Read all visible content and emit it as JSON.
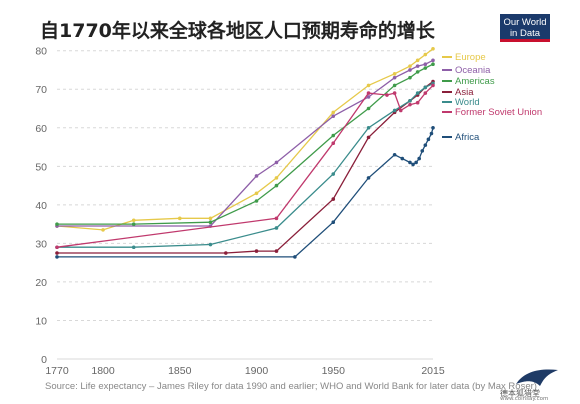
{
  "title": "自1770年以来全球各地区人口预期寿命的增长",
  "logo": {
    "line1": "Our World",
    "line2": "in Data"
  },
  "source": "Source: Life expectancy – James Riley for data 1990 and earlier; WHO and World Bank for later data (by Max Roser)",
  "watermark": {
    "name": "德本狐猎堂",
    "url": "www.coinsay.com"
  },
  "colors": {
    "Europe": "#e6c94a",
    "Oceania": "#8e5fa8",
    "Americas": "#3f9b4a",
    "Asia": "#8a1f3a",
    "World": "#3a8c8c",
    "Former Soviet Union": "#c0396d",
    "Africa": "#1f4e79"
  },
  "chart_data": {
    "type": "line",
    "title": "自1770年以来全球各地区人口预期寿命的增长",
    "xlabel": "",
    "ylabel": "",
    "xlim": [
      1770,
      2015
    ],
    "ylim": [
      0,
      82
    ],
    "x_ticks": [
      1770,
      1800,
      1850,
      1900,
      1950,
      2015
    ],
    "y_ticks": [
      0,
      10,
      20,
      30,
      40,
      50,
      60,
      70,
      80
    ],
    "grid": "horizontal",
    "legend": "right",
    "series": [
      {
        "name": "Europe",
        "points": [
          [
            1770,
            34.5
          ],
          [
            1800,
            33.5
          ],
          [
            1820,
            36
          ],
          [
            1850,
            36.5
          ],
          [
            1870,
            36.5
          ],
          [
            1900,
            43
          ],
          [
            1913,
            47
          ],
          [
            1950,
            64
          ],
          [
            1973,
            71
          ],
          [
            1990,
            74
          ],
          [
            2000,
            76
          ],
          [
            2005,
            77.5
          ],
          [
            2010,
            79
          ],
          [
            2015,
            80.5
          ]
        ]
      },
      {
        "name": "Oceania",
        "points": [
          [
            1770,
            34.5
          ],
          [
            1870,
            34.5
          ],
          [
            1900,
            47.5
          ],
          [
            1913,
            51
          ],
          [
            1950,
            63
          ],
          [
            1973,
            68
          ],
          [
            1990,
            73
          ],
          [
            2000,
            75
          ],
          [
            2005,
            76
          ],
          [
            2010,
            76.5
          ],
          [
            2015,
            77.5
          ]
        ]
      },
      {
        "name": "Americas",
        "points": [
          [
            1770,
            35
          ],
          [
            1820,
            35
          ],
          [
            1870,
            35.5
          ],
          [
            1900,
            41
          ],
          [
            1913,
            45
          ],
          [
            1950,
            58
          ],
          [
            1973,
            65
          ],
          [
            1990,
            71
          ],
          [
            2000,
            73
          ],
          [
            2005,
            74.5
          ],
          [
            2010,
            75.5
          ],
          [
            2015,
            76.5
          ]
        ]
      },
      {
        "name": "Asia",
        "points": [
          [
            1770,
            27.5
          ],
          [
            1880,
            27.5
          ],
          [
            1900,
            28
          ],
          [
            1913,
            28
          ],
          [
            1950,
            41.5
          ],
          [
            1973,
            57.5
          ],
          [
            1990,
            64
          ],
          [
            2000,
            67
          ],
          [
            2005,
            68.5
          ],
          [
            2010,
            70.5
          ],
          [
            2015,
            72
          ]
        ]
      },
      {
        "name": "World",
        "points": [
          [
            1770,
            29
          ],
          [
            1820,
            29
          ],
          [
            1870,
            29.7
          ],
          [
            1913,
            34
          ],
          [
            1950,
            48
          ],
          [
            1973,
            60
          ],
          [
            1990,
            64.5
          ],
          [
            2000,
            67
          ],
          [
            2005,
            69
          ],
          [
            2010,
            70.5
          ],
          [
            2015,
            71.5
          ]
        ]
      },
      {
        "name": "Former Soviet Union",
        "points": [
          [
            1770,
            29
          ],
          [
            1913,
            36.5
          ],
          [
            1950,
            56
          ],
          [
            1973,
            69
          ],
          [
            1985,
            68.5
          ],
          [
            1990,
            69
          ],
          [
            1994,
            64.5
          ],
          [
            2000,
            66
          ],
          [
            2005,
            66.5
          ],
          [
            2010,
            69
          ],
          [
            2015,
            71
          ]
        ]
      },
      {
        "name": "Africa",
        "points": [
          [
            1770,
            26.5
          ],
          [
            1925,
            26.5
          ],
          [
            1950,
            35.5
          ],
          [
            1973,
            47
          ],
          [
            1990,
            53
          ],
          [
            1995,
            52
          ],
          [
            2000,
            51
          ],
          [
            2002,
            50.5
          ],
          [
            2004,
            51
          ],
          [
            2006,
            52
          ],
          [
            2008,
            54
          ],
          [
            2010,
            55.5
          ],
          [
            2012,
            57
          ],
          [
            2014,
            58.5
          ],
          [
            2015,
            60
          ]
        ]
      }
    ]
  }
}
